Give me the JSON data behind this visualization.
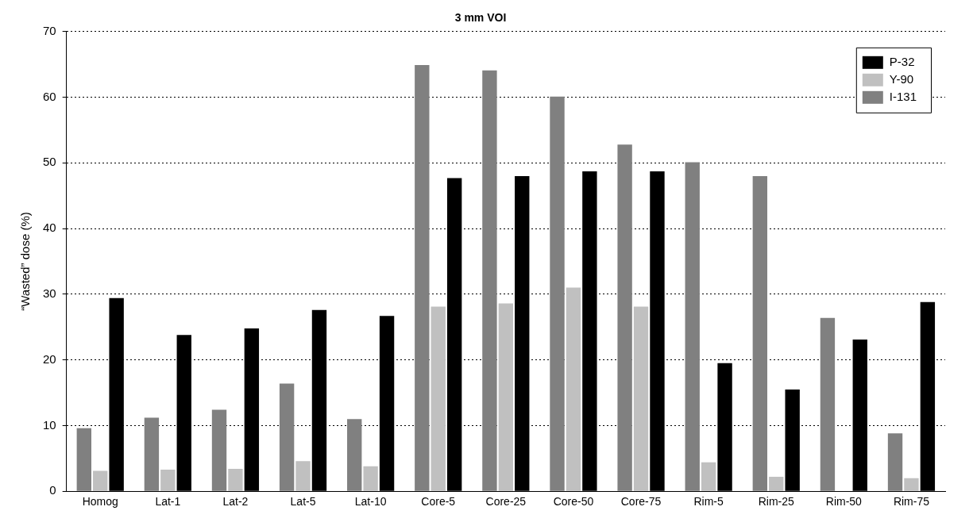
{
  "chart_data": {
    "type": "bar",
    "title": "3 mm VOI",
    "ylabel": "“Wasted” dose (%)",
    "categories": [
      "Homog",
      "Lat-1",
      "Lat-2",
      "Lat-5",
      "Lat-10",
      "Core-5",
      "Core-25",
      "Core-50",
      "Core-75",
      "Rim-5",
      "Rim-25",
      "Rim-50",
      "Rim-75"
    ],
    "series": [
      {
        "name": "I-131",
        "color": "#808080",
        "values": [
          9.6,
          11.2,
          12.4,
          16.4,
          11.0,
          64.9,
          64.1,
          60.1,
          52.8,
          50.1,
          48.0,
          26.4,
          8.8
        ]
      },
      {
        "name": "Y-90",
        "color": "#c0c0c0",
        "values": [
          3.1,
          3.3,
          3.4,
          4.6,
          3.8,
          28.1,
          28.6,
          31.0,
          28.1,
          4.4,
          2.2,
          null,
          2.0
        ]
      },
      {
        "name": "P-32",
        "color": "#000000",
        "values": [
          29.4,
          23.8,
          24.8,
          27.6,
          26.7,
          47.7,
          48.0,
          48.7,
          48.7,
          19.5,
          15.5,
          23.1,
          28.8
        ]
      }
    ],
    "ylim": [
      0,
      70
    ],
    "yticks": [
      0,
      10,
      20,
      30,
      40,
      50,
      60,
      70
    ],
    "grid": "y",
    "legend": "top right"
  }
}
